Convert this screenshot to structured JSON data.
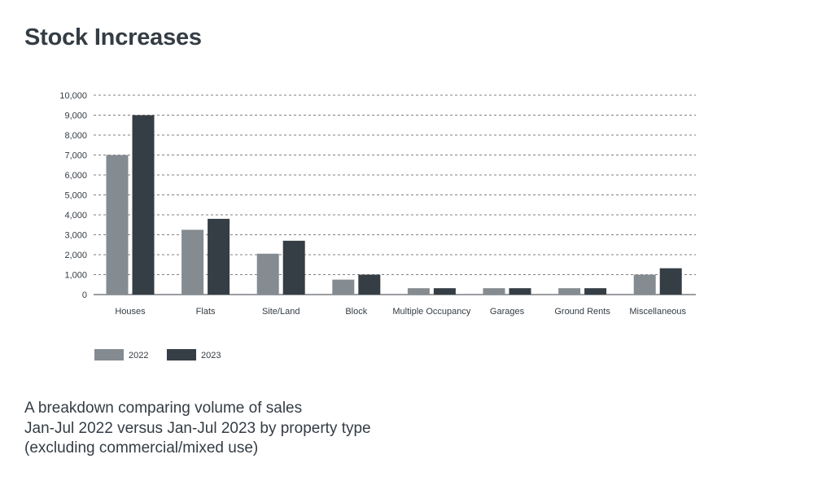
{
  "page": {
    "title": "Stock Increases",
    "caption": [
      "A breakdown comparing volume of sales",
      "Jan-Jul 2022 versus Jan-Jul 2023 by property type",
      "(excluding commercial/mixed use)"
    ]
  },
  "colors": {
    "series_2022": "#848b91",
    "series_2023": "#353d45",
    "text": "#343c44",
    "grid": "#555555"
  },
  "chart_data": {
    "type": "bar",
    "title": "Stock Increases",
    "xlabel": "",
    "ylabel": "",
    "ylim": [
      0,
      10000
    ],
    "yticks": [
      0,
      1000,
      2000,
      3000,
      4000,
      5000,
      6000,
      7000,
      8000,
      9000,
      10000
    ],
    "ytick_labels": [
      "0",
      "1,000",
      "2,000",
      "3,000",
      "4,000",
      "5,000",
      "6,000",
      "7,000",
      "8,000",
      "9,000",
      "10,000"
    ],
    "grid": true,
    "grid_style": "dashed",
    "legend_position": "bottom-left",
    "categories": [
      "Houses",
      "Flats",
      "Site/Land",
      "Block",
      "Multiple Occupancy",
      "Garages",
      "Ground Rents",
      "Miscellaneous"
    ],
    "series": [
      {
        "name": "2022",
        "values": [
          7000,
          3250,
          2050,
          750,
          320,
          320,
          320,
          1000
        ]
      },
      {
        "name": "2023",
        "values": [
          9000,
          3800,
          2700,
          1000,
          320,
          320,
          320,
          1320
        ]
      }
    ]
  }
}
